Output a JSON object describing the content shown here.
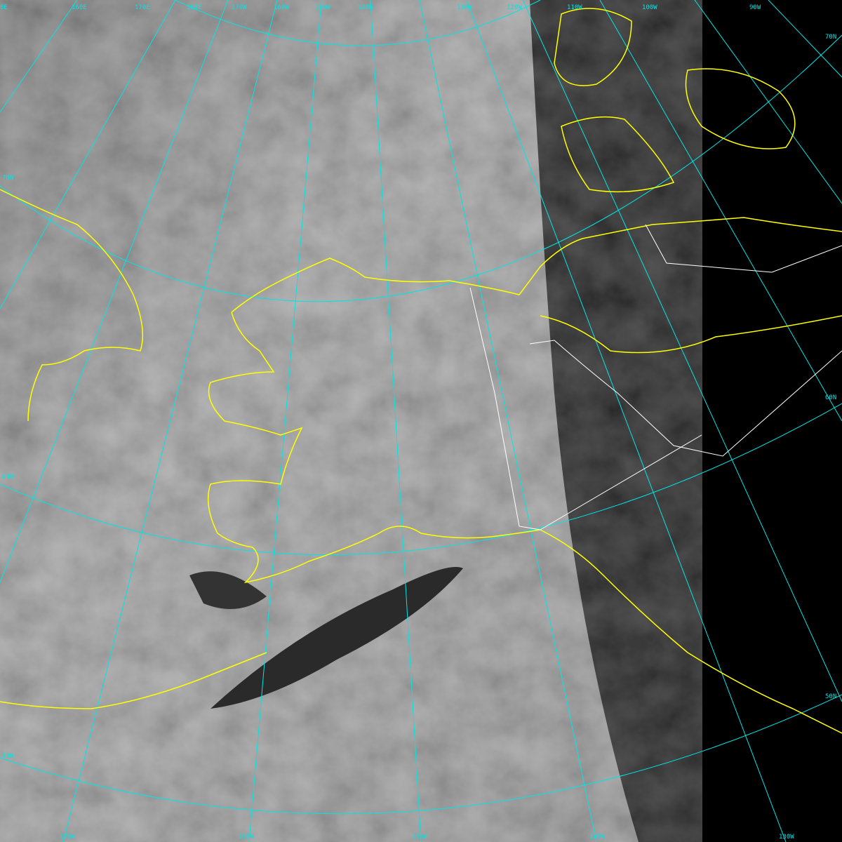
{
  "colors": {
    "graticule": "#00e5e5",
    "coastline": "#ffff00",
    "border": "#ffffff",
    "night_side": "#000000"
  },
  "top_labels": [
    "0E",
    "160E",
    "170E",
    "180E",
    "170W",
    "160W",
    "150W",
    "140W",
    "130W",
    "120W",
    "110W",
    "100W",
    "90W"
  ],
  "bottom_labels": [
    "170W",
    "160W",
    "150W",
    "140W",
    "130W"
  ],
  "left_labels": [
    "70N",
    "60N",
    "50N"
  ],
  "right_labels": [
    "70N",
    "60N",
    "50N"
  ]
}
